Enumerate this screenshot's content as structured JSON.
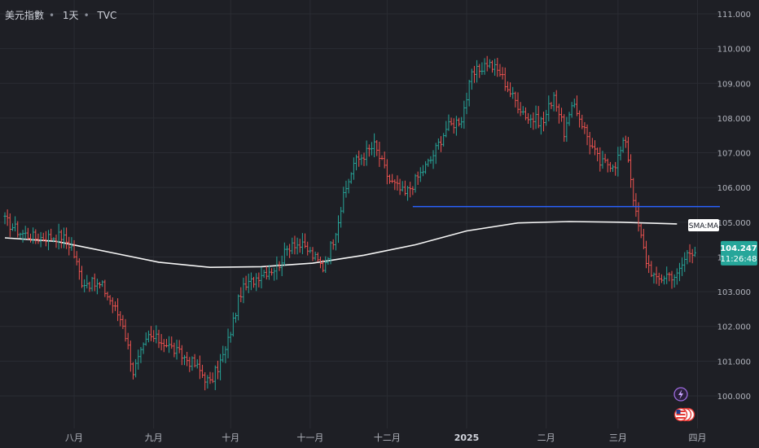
{
  "header": {
    "symbol": "美元指數",
    "interval": "1天",
    "source": "TVC",
    "separator": "•"
  },
  "colors": {
    "background": "#1e1f25",
    "up": "#26a69a",
    "down": "#ef5350",
    "ma": "#f5f5f5",
    "hline": "#2962ff",
    "grid": "#2a2c33",
    "axis_text": "#b2b5be",
    "price_badge": "#26a69a"
  },
  "icons": [
    "lightning-icon",
    "us-flag-event-icon"
  ],
  "chart_data": {
    "type": "ohlc",
    "ylim": [
      99.6,
      111.3
    ],
    "y_ticks": [
      "100.000",
      "101.000",
      "102.000",
      "103.000",
      "104.000",
      "105.000",
      "106.000",
      "107.000",
      "108.000",
      "109.000",
      "110.000",
      "111.000"
    ],
    "x_ticks": [
      {
        "label": "八月",
        "day": 27
      },
      {
        "label": "九月",
        "day": 58
      },
      {
        "label": "十月",
        "day": 88
      },
      {
        "label": "十一月",
        "day": 119
      },
      {
        "label": "十二月",
        "day": 149
      },
      {
        "label": "2025",
        "day": 180,
        "bold": true
      },
      {
        "label": "二月",
        "day": 211
      },
      {
        "label": "三月",
        "day": 239
      },
      {
        "label": "四月",
        "day": 270
      }
    ],
    "last_price": "104.247",
    "countdown": "11:26:48",
    "series": [
      {
        "name": "SMA:MA",
        "kind": "line",
        "points": [
          [
            0,
            104.55
          ],
          [
            20,
            104.45
          ],
          [
            40,
            104.15
          ],
          [
            60,
            103.85
          ],
          [
            80,
            103.7
          ],
          [
            100,
            103.72
          ],
          [
            120,
            103.82
          ],
          [
            140,
            104.05
          ],
          [
            160,
            104.35
          ],
          [
            180,
            104.75
          ],
          [
            200,
            104.98
          ],
          [
            220,
            105.02
          ],
          [
            240,
            105.0
          ],
          [
            262,
            104.95
          ]
        ]
      },
      {
        "name": "",
        "kind": "hline",
        "value": 105.45,
        "from_day": 159,
        "to_day": 284
      }
    ],
    "anchors": [
      [
        0,
        105.05
      ],
      [
        6,
        104.7
      ],
      [
        12,
        104.55
      ],
      [
        22,
        104.6
      ],
      [
        26,
        104.3
      ],
      [
        30,
        103.3
      ],
      [
        38,
        103.15
      ],
      [
        46,
        102.1
      ],
      [
        50,
        100.7
      ],
      [
        56,
        101.7
      ],
      [
        62,
        101.55
      ],
      [
        68,
        101.2
      ],
      [
        74,
        100.9
      ],
      [
        80,
        100.35
      ],
      [
        86,
        101.3
      ],
      [
        92,
        103.0
      ],
      [
        100,
        103.55
      ],
      [
        106,
        103.7
      ],
      [
        112,
        104.45
      ],
      [
        118,
        104.2
      ],
      [
        124,
        103.7
      ],
      [
        128,
        104.5
      ],
      [
        132,
        105.7
      ],
      [
        136,
        106.7
      ],
      [
        144,
        107.2
      ],
      [
        150,
        106.2
      ],
      [
        156,
        105.8
      ],
      [
        160,
        106.2
      ],
      [
        166,
        106.8
      ],
      [
        172,
        107.7
      ],
      [
        178,
        108.0
      ],
      [
        182,
        109.2
      ],
      [
        188,
        109.6
      ],
      [
        193,
        109.3
      ],
      [
        198,
        108.6
      ],
      [
        204,
        108.0
      ],
      [
        210,
        107.9
      ],
      [
        214,
        108.7
      ],
      [
        218,
        107.6
      ],
      [
        222,
        108.4
      ],
      [
        228,
        107.3
      ],
      [
        232,
        106.7
      ],
      [
        238,
        106.7
      ],
      [
        242,
        107.4
      ],
      [
        246,
        105.2
      ],
      [
        250,
        103.9
      ],
      [
        254,
        103.3
      ],
      [
        258,
        103.5
      ],
      [
        262,
        103.45
      ],
      [
        266,
        104.1
      ],
      [
        269,
        104.25
      ]
    ]
  }
}
